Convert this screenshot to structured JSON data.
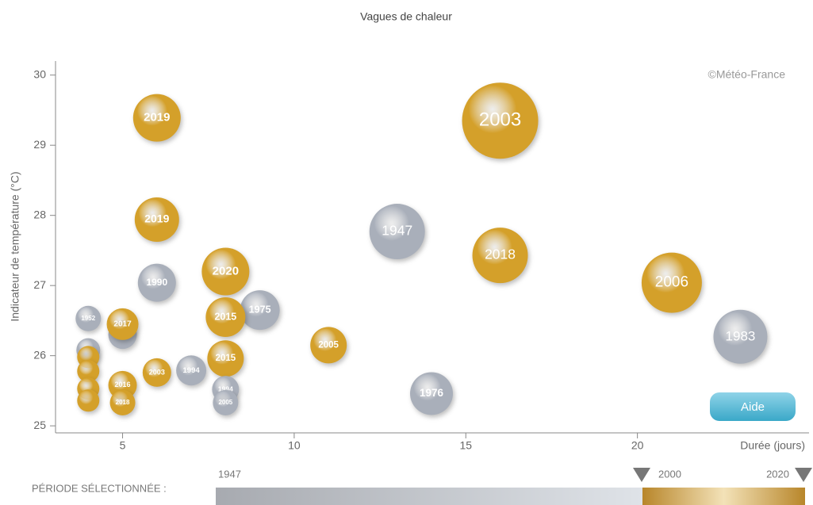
{
  "chart_data": {
    "type": "scatter",
    "title": "Vagues de chaleur",
    "y_label": "Indicateur de température (°C)",
    "x_label": "Durée (jours)",
    "credit": "©Météo-France",
    "button": "Aide",
    "period_label": "PÉRIODE SÉLECTIONNÉE :",
    "period_start": "1947",
    "period_split": "2000",
    "period_end": "2020",
    "xlim": [
      3,
      25
    ],
    "xticks": [
      5,
      10,
      15,
      20
    ],
    "ylim": [
      24.9,
      30.2
    ],
    "yticks": [
      25,
      26,
      27,
      28,
      29,
      30
    ],
    "labels": [
      "2019",
      "2003",
      "2019",
      "1947",
      "2018",
      "2020",
      "1990",
      "2006",
      "1975",
      "1952",
      null,
      "2017",
      "2015",
      "2005",
      "1983",
      null,
      "2015",
      null,
      null,
      null,
      null,
      "2003",
      "1994",
      "2016",
      "2018",
      "1994",
      "2005",
      "1976"
    ],
    "x": [
      6,
      16,
      6,
      13,
      16,
      8,
      6,
      21,
      9,
      4,
      5,
      5,
      8,
      11,
      23,
      4,
      8,
      4,
      4,
      4,
      4,
      6,
      7,
      5,
      5,
      8,
      8,
      14
    ],
    "y": [
      29.39,
      29.35,
      27.94,
      27.77,
      27.43,
      27.2,
      27.04,
      27.04,
      26.65,
      26.53,
      26.3,
      26.45,
      26.55,
      26.15,
      26.27,
      26.08,
      25.96,
      25.98,
      25.78,
      25.53,
      25.36,
      25.76,
      25.79,
      25.58,
      25.33,
      25.52,
      25.33,
      25.46
    ],
    "sizes": [
      30,
      48,
      28,
      35,
      35,
      30,
      24,
      38,
      25,
      16,
      18,
      20,
      25,
      23,
      34,
      15,
      23,
      14,
      14,
      14,
      14,
      18,
      19,
      18,
      16,
      17,
      16,
      27
    ],
    "colors": [
      "#d4a02a",
      "#d4a02a",
      "#d4a02a",
      "#a9afba",
      "#d4a02a",
      "#d4a02a",
      "#a9afba",
      "#d4a02a",
      "#a9afba",
      "#a9afba",
      "#a9afba",
      "#d4a02a",
      "#d4a02a",
      "#d4a02a",
      "#a9afba",
      "#a9afba",
      "#d4a02a",
      "#d4a02a",
      "#d4a02a",
      "#d4a02a",
      "#d4a02a",
      "#d4a02a",
      "#a9afba",
      "#d4a02a",
      "#d4a02a",
      "#a9afba",
      "#a9afba",
      "#a9afba"
    ]
  }
}
